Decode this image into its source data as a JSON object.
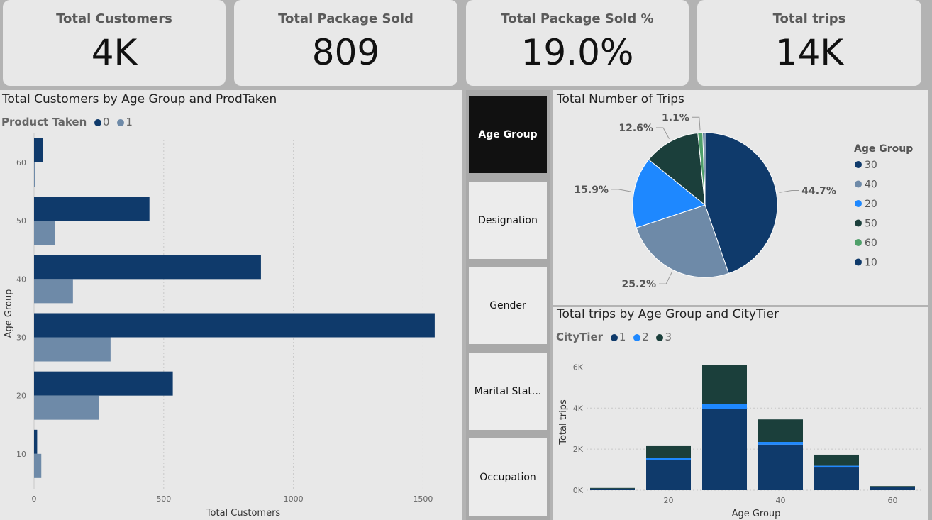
{
  "kpis": [
    {
      "label": "Total Customers",
      "value": "4K"
    },
    {
      "label": "Total Package Sold",
      "value": "809"
    },
    {
      "label": "Total Package Sold %",
      "value": "19.0%"
    },
    {
      "label": "Total trips",
      "value": "14K"
    }
  ],
  "slicer": {
    "items": [
      "Age Group",
      "Designation",
      "Gender",
      "Marital Stat...",
      "Occupation"
    ],
    "selected": "Age Group"
  },
  "colors": {
    "dark": "#0f3a6b",
    "grey": "#6e8aa8",
    "bright": "#1e88ff",
    "green": "#1b3f3b",
    "lightgreen": "#4fa06a"
  },
  "chart_data": [
    {
      "type": "bar",
      "orientation": "horizontal",
      "title": "Total Customers by Age Group and ProdTaken",
      "legend_title": "Product Taken",
      "xlabel": "Total Customers",
      "ylabel": "Age Group",
      "categories": [
        "60",
        "50",
        "40",
        "30",
        "20",
        "10"
      ],
      "x_ticks": [
        "0",
        "500",
        "1000",
        "1500"
      ],
      "xlim": [
        0,
        1600
      ],
      "series": [
        {
          "name": "0",
          "values": [
            35,
            445,
            875,
            1545,
            535,
            12
          ]
        },
        {
          "name": "1",
          "values": [
            3,
            82,
            150,
            295,
            250,
            28
          ]
        }
      ]
    },
    {
      "type": "pie",
      "title": "Total Number of Trips",
      "legend_title": "Age Group",
      "legend": [
        "30",
        "40",
        "20",
        "50",
        "60",
        "10"
      ],
      "slices": [
        {
          "label": "30",
          "value": 44.7,
          "display": "44.7%",
          "color": "#0f3a6b"
        },
        {
          "label": "40",
          "value": 25.2,
          "display": "25.2%",
          "color": "#6e8aa8"
        },
        {
          "label": "20",
          "value": 15.9,
          "display": "15.9%",
          "color": "#1e88ff"
        },
        {
          "label": "50",
          "value": 12.6,
          "display": "12.6%",
          "color": "#1b3f3b"
        },
        {
          "label": "60",
          "value": 1.1,
          "display": "1.1%",
          "color": "#4fa06a"
        },
        {
          "label": "10",
          "value": 0.5,
          "display": "",
          "color": "#0f3a6b"
        }
      ]
    },
    {
      "type": "bar",
      "stacked": true,
      "title": "Total trips by Age Group and CityTier",
      "legend_title": "CityTier",
      "xlabel": "Age Group",
      "ylabel": "Total trips",
      "categories": [
        "10",
        "20",
        "30",
        "40",
        "50",
        "60"
      ],
      "x_ticks": [
        "20",
        "40",
        "60"
      ],
      "y_ticks": [
        "0K",
        "2K",
        "4K",
        "6K"
      ],
      "ylim": [
        0,
        6500
      ],
      "series": [
        {
          "name": "1",
          "values": [
            80,
            1480,
            3950,
            2220,
            1140,
            150
          ]
        },
        {
          "name": "2",
          "values": [
            0,
            100,
            260,
            130,
            50,
            0
          ]
        },
        {
          "name": "3",
          "values": [
            30,
            600,
            1900,
            1100,
            540,
            50
          ]
        }
      ]
    }
  ]
}
